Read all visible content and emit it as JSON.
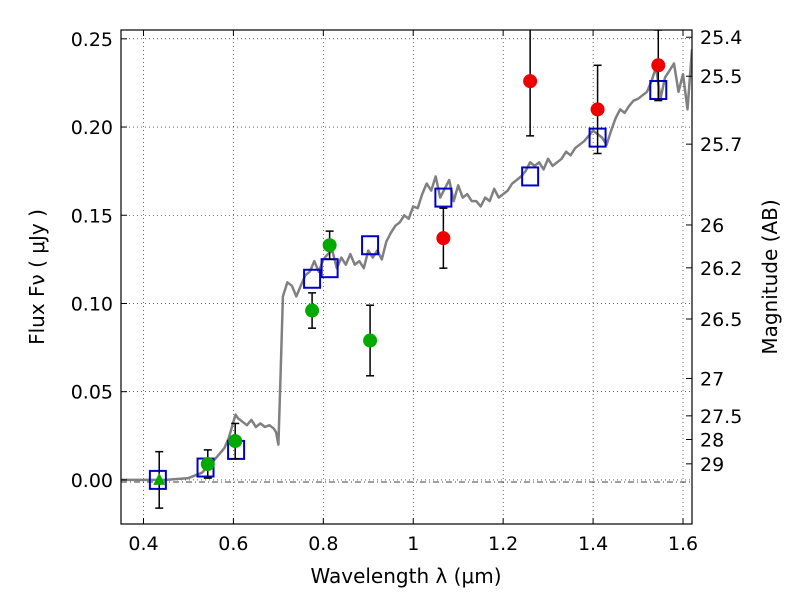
{
  "chart_data": {
    "type": "scatter",
    "xlabel": "Wavelength  λ (μm)",
    "ylabel": "Flux  Fν  ( μJy )",
    "y2label": "Magnitude (AB)",
    "xlim": [
      0.35,
      1.62
    ],
    "ylim": [
      -0.025,
      0.255
    ],
    "grid": true,
    "x_ticks": [
      0.4,
      0.6,
      0.8,
      1.0,
      1.2,
      1.4,
      1.6
    ],
    "x_tick_labels": [
      "0.4",
      "0.6",
      "0.8",
      "1",
      "1.2",
      "1.4",
      "1.6"
    ],
    "y_ticks": [
      0.0,
      0.05,
      0.1,
      0.15,
      0.2,
      0.25
    ],
    "y_tick_labels": [
      "0.00",
      "0.05",
      "0.10",
      "0.15",
      "0.20",
      "0.25"
    ],
    "magnitude_ticks": [
      {
        "label": "25.4",
        "flux": 0.2509
      },
      {
        "label": "25.5",
        "flux": 0.2288
      },
      {
        "label": "25.7",
        "flux": 0.1903
      },
      {
        "label": "26",
        "flux": 0.1445
      },
      {
        "label": "26.2",
        "flux": 0.1202
      },
      {
        "label": "26.5",
        "flux": 0.0912
      },
      {
        "label": "27",
        "flux": 0.0575
      },
      {
        "label": "27.5",
        "flux": 0.0363
      },
      {
        "label": "28",
        "flux": 0.0229
      },
      {
        "label": "29",
        "flux": 0.0091
      }
    ],
    "series": [
      {
        "name": "model-spectrum",
        "kind": "line",
        "color": "#808080",
        "x": [
          0.35,
          0.4,
          0.45,
          0.5,
          0.53,
          0.56,
          0.58,
          0.59,
          0.6,
          0.605,
          0.61,
          0.62,
          0.63,
          0.64,
          0.65,
          0.66,
          0.67,
          0.68,
          0.69,
          0.695,
          0.7,
          0.705,
          0.71,
          0.72,
          0.73,
          0.74,
          0.75,
          0.76,
          0.77,
          0.78,
          0.79,
          0.8,
          0.81,
          0.82,
          0.83,
          0.84,
          0.85,
          0.86,
          0.87,
          0.88,
          0.89,
          0.9,
          0.91,
          0.92,
          0.93,
          0.94,
          0.95,
          0.96,
          0.97,
          0.98,
          0.99,
          1.0,
          1.01,
          1.02,
          1.03,
          1.04,
          1.05,
          1.06,
          1.07,
          1.08,
          1.09,
          1.1,
          1.11,
          1.12,
          1.13,
          1.14,
          1.15,
          1.16,
          1.17,
          1.18,
          1.19,
          1.2,
          1.21,
          1.22,
          1.23,
          1.24,
          1.25,
          1.26,
          1.27,
          1.28,
          1.29,
          1.3,
          1.31,
          1.32,
          1.33,
          1.34,
          1.35,
          1.36,
          1.37,
          1.38,
          1.39,
          1.4,
          1.41,
          1.42,
          1.43,
          1.44,
          1.45,
          1.46,
          1.47,
          1.48,
          1.49,
          1.5,
          1.51,
          1.52,
          1.53,
          1.54,
          1.55,
          1.56,
          1.57,
          1.58,
          1.59,
          1.6,
          1.61,
          1.62
        ],
        "y": [
          0.0,
          0.0,
          0.0,
          0.001,
          0.004,
          0.012,
          0.018,
          0.024,
          0.033,
          0.037,
          0.035,
          0.033,
          0.031,
          0.034,
          0.03,
          0.032,
          0.03,
          0.031,
          0.029,
          0.027,
          0.02,
          0.06,
          0.104,
          0.112,
          0.11,
          0.104,
          0.11,
          0.116,
          0.118,
          0.124,
          0.118,
          0.125,
          0.128,
          0.13,
          0.12,
          0.126,
          0.122,
          0.128,
          0.122,
          0.124,
          0.12,
          0.13,
          0.126,
          0.13,
          0.125,
          0.135,
          0.14,
          0.144,
          0.146,
          0.15,
          0.148,
          0.155,
          0.154,
          0.162,
          0.168,
          0.164,
          0.172,
          0.16,
          0.165,
          0.17,
          0.158,
          0.167,
          0.16,
          0.162,
          0.158,
          0.158,
          0.155,
          0.16,
          0.158,
          0.165,
          0.16,
          0.162,
          0.164,
          0.168,
          0.17,
          0.172,
          0.175,
          0.18,
          0.178,
          0.18,
          0.176,
          0.182,
          0.178,
          0.18,
          0.182,
          0.186,
          0.184,
          0.188,
          0.19,
          0.192,
          0.195,
          0.198,
          0.196,
          0.194,
          0.19,
          0.198,
          0.205,
          0.21,
          0.208,
          0.212,
          0.215,
          0.216,
          0.218,
          0.22,
          0.226,
          0.234,
          0.216,
          0.228,
          0.232,
          0.236,
          0.22,
          0.23,
          0.21,
          0.244
        ]
      },
      {
        "name": "model-photometry",
        "kind": "open-square",
        "color": "#0000cc",
        "x": [
          0.432,
          0.538,
          0.606,
          0.775,
          0.814,
          0.904,
          1.067,
          1.26,
          1.41,
          1.545
        ],
        "y": [
          0.0,
          0.007,
          0.017,
          0.114,
          0.12,
          0.133,
          0.16,
          0.172,
          0.194,
          0.221
        ]
      },
      {
        "name": "optical-detections",
        "kind": "filled-circle",
        "color": "#00aa00",
        "x": [
          0.543,
          0.604,
          0.775,
          0.814,
          0.904
        ],
        "y": [
          0.009,
          0.022,
          0.096,
          0.133,
          0.079
        ],
        "yerr": [
          0.008,
          0.01,
          0.01,
          0.008,
          0.02
        ]
      },
      {
        "name": "optical-upper-limit",
        "kind": "filled-triangle",
        "color": "#00aa00",
        "x": [
          0.435
        ],
        "y": [
          0.0
        ],
        "yerr": [
          0.016
        ]
      },
      {
        "name": "nir-detections",
        "kind": "filled-circle",
        "color": "#ee0000",
        "x": [
          1.067,
          1.26,
          1.41,
          1.545
        ],
        "y": [
          0.137,
          0.226,
          0.21,
          0.235
        ],
        "yerr": [
          0.017,
          0.031,
          0.025,
          0.02
        ]
      }
    ]
  }
}
